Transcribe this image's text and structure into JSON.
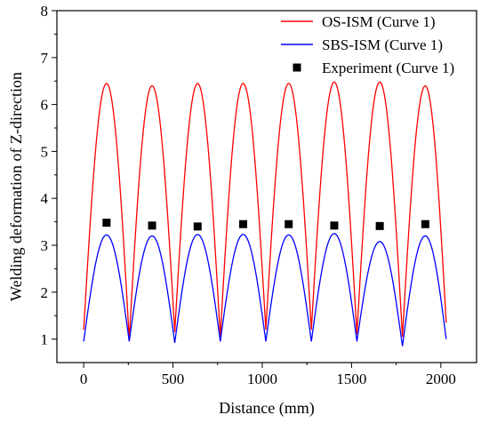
{
  "chart_data": {
    "type": "line",
    "title": "",
    "xlabel": "Distance (mm)",
    "ylabel": "Welding deformation of Z-direction",
    "xlim": [
      -150,
      2200
    ],
    "ylim": [
      0.5,
      8
    ],
    "xticks": [
      0,
      500,
      1000,
      1500,
      2000
    ],
    "yticks": [
      1,
      2,
      3,
      4,
      5,
      6,
      7,
      8
    ],
    "grid": false,
    "legend_position": "top-right",
    "series": [
      {
        "name": "OS-ISM (Curve 1)",
        "type": "line",
        "color": "#ff0000",
        "x": [
          0,
          128,
          255,
          383,
          510,
          638,
          765,
          893,
          1020,
          1148,
          1275,
          1403,
          1530,
          1658,
          1785,
          1913,
          2030
        ],
        "y": [
          1.2,
          6.45,
          1.0,
          6.4,
          1.15,
          6.45,
          1.05,
          6.45,
          1.2,
          6.45,
          1.2,
          6.48,
          1.1,
          6.48,
          1.05,
          6.4,
          1.35
        ]
      },
      {
        "name": "SBS-ISM (Curve 1)",
        "type": "line",
        "color": "#0000ff",
        "x": [
          0,
          128,
          255,
          383,
          510,
          638,
          765,
          893,
          1020,
          1148,
          1275,
          1403,
          1530,
          1658,
          1785,
          1913,
          2030
        ],
        "y": [
          0.95,
          3.22,
          0.95,
          3.2,
          0.92,
          3.23,
          0.95,
          3.23,
          0.95,
          3.22,
          0.95,
          3.25,
          0.95,
          3.08,
          0.85,
          3.2,
          1.0
        ]
      },
      {
        "name": "Experiment (Curve 1)",
        "type": "scatter",
        "color": "#000000",
        "x": [
          128,
          383,
          638,
          893,
          1148,
          1403,
          1658,
          1913
        ],
        "y": [
          3.48,
          3.42,
          3.4,
          3.45,
          3.45,
          3.42,
          3.41,
          3.45
        ]
      }
    ]
  }
}
